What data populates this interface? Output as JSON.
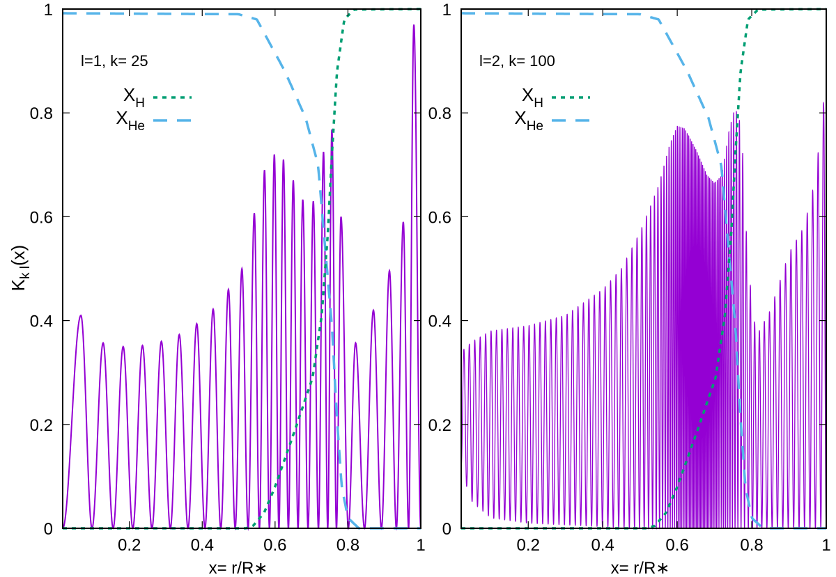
{
  "colors": {
    "kernel": "#9400D3",
    "XH": "#009E73",
    "XHe": "#56B4E9",
    "axis": "#000000"
  },
  "chart_data": [
    {
      "type": "line",
      "panel": "left",
      "annotation": "l=1,  k= 25",
      "xlabel": "x= r/R∗",
      "ylabel": "K",
      "ylabel_sub": "k l",
      "ylabel_suffix": "(x)",
      "xlim": [
        0.017,
        1
      ],
      "ylim": [
        0,
        1
      ],
      "xticks": [
        "0.2",
        "0.4",
        "0.6",
        "0.8",
        "1"
      ],
      "xtick_values": [
        0.2,
        0.4,
        0.6,
        0.8,
        1
      ],
      "yticks": [
        "0",
        "0.2",
        "0.4",
        "0.6",
        "0.8",
        "1"
      ],
      "ytick_values": [
        0,
        0.2,
        0.4,
        0.6,
        0.8,
        1
      ],
      "legend": [
        {
          "main": "X",
          "sub": "H",
          "series": "XH",
          "style": "dotted"
        },
        {
          "main": "X",
          "sub": "He",
          "series": "XHe",
          "style": "dashed"
        }
      ],
      "kernel_peaks": {
        "x": [
          0.067,
          0.128,
          0.183,
          0.236,
          0.288,
          0.337,
          0.385,
          0.43,
          0.472,
          0.509,
          0.543,
          0.571,
          0.598,
          0.623,
          0.65,
          0.676,
          0.705,
          0.733,
          0.756,
          0.781,
          0.821,
          0.87,
          0.914,
          0.952,
          0.981
        ],
        "y": [
          0.41,
          0.357,
          0.35,
          0.352,
          0.36,
          0.373,
          0.394,
          0.422,
          0.46,
          0.5,
          0.607,
          0.69,
          0.72,
          0.71,
          0.67,
          0.633,
          0.63,
          0.725,
          0.768,
          0.6,
          0.357,
          0.42,
          0.496,
          0.59,
          0.97
        ]
      }
    },
    {
      "type": "line",
      "panel": "right",
      "annotation": "l=2,  k= 100",
      "xlabel": "x= r/R∗",
      "xlim": [
        0.02,
        1
      ],
      "ylim": [
        0,
        1
      ],
      "xticks": [
        "0.2",
        "0.4",
        "0.6",
        "0.8",
        "1"
      ],
      "xtick_values": [
        0.2,
        0.4,
        0.6,
        0.8,
        1
      ],
      "yticks": [
        "0",
        "0.2",
        "0.4",
        "0.6",
        "0.8",
        "1"
      ],
      "ytick_values": [
        0,
        0.2,
        0.4,
        0.6,
        0.8,
        1
      ],
      "legend": [
        {
          "main": "X",
          "sub": "H",
          "series": "XH",
          "style": "dotted"
        },
        {
          "main": "X",
          "sub": "He",
          "series": "XHe",
          "style": "dashed"
        }
      ],
      "kernel_oscillations": 100,
      "kernel_upper_envelope": {
        "x": [
          0.02,
          0.05,
          0.1,
          0.2,
          0.3,
          0.4,
          0.45,
          0.5,
          0.55,
          0.58,
          0.6,
          0.62,
          0.65,
          0.68,
          0.7,
          0.72,
          0.74,
          0.755,
          0.77,
          0.78,
          0.79,
          0.8,
          0.81,
          0.82,
          0.85,
          0.9,
          0.94,
          0.97,
          0.99,
          1.0
        ],
        "y": [
          0.34,
          0.36,
          0.38,
          0.39,
          0.41,
          0.46,
          0.5,
          0.57,
          0.66,
          0.74,
          0.775,
          0.77,
          0.73,
          0.68,
          0.665,
          0.68,
          0.77,
          0.81,
          0.78,
          0.68,
          0.48,
          0.46,
          0.38,
          0.38,
          0.42,
          0.53,
          0.58,
          0.67,
          0.8,
          0.87
        ]
      },
      "kernel_lower_envelope": {
        "x": [
          0.02,
          0.03,
          0.05,
          0.1,
          0.2,
          0.5,
          1.0
        ],
        "y": [
          0.12,
          0.09,
          0.05,
          0.02,
          0.01,
          0.0,
          0.0
        ]
      }
    }
  ],
  "abundance": {
    "XH": {
      "x": [
        0.0,
        0.52,
        0.54,
        0.57,
        0.6,
        0.655,
        0.703,
        0.728,
        0.745,
        0.756,
        0.77,
        0.79,
        0.817,
        1.0
      ],
      "y": [
        0.0,
        0.0,
        0.005,
        0.03,
        0.08,
        0.19,
        0.29,
        0.41,
        0.57,
        0.72,
        0.88,
        0.98,
        0.999,
        1.0
      ]
    },
    "XHe": {
      "x": [
        0.0,
        0.5,
        0.55,
        0.627,
        0.684,
        0.718,
        0.74,
        0.756,
        0.77,
        0.783,
        0.8,
        0.83,
        1.0
      ],
      "y": [
        0.992,
        0.99,
        0.98,
        0.88,
        0.79,
        0.7,
        0.52,
        0.39,
        0.21,
        0.08,
        0.02,
        0.0,
        0.0
      ]
    }
  }
}
